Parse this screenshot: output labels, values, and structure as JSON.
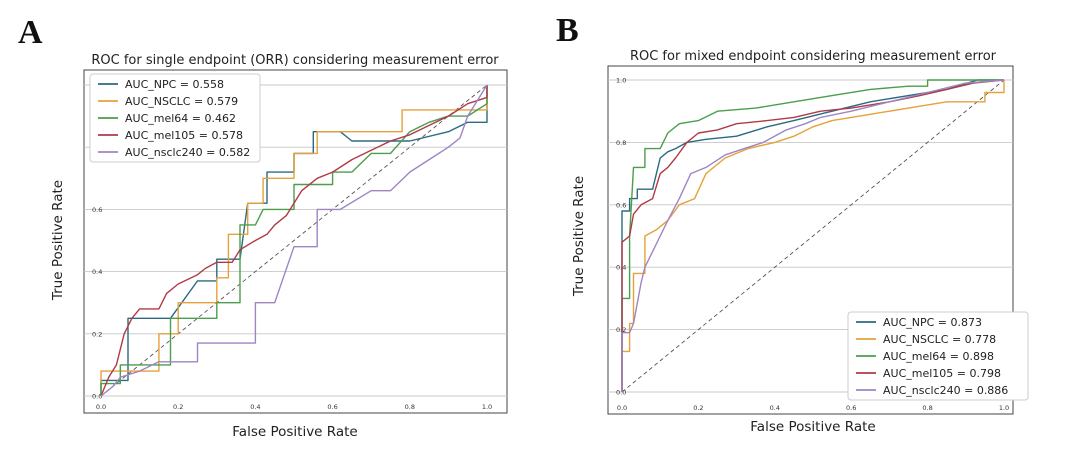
{
  "panels": {
    "a_label": "A",
    "b_label": "B"
  },
  "chart_data": [
    {
      "type": "line",
      "title": "ROC for single endpoint (ORR) considering measurement error",
      "xlabel": "False Positive Rate",
      "ylabel": "True Positive Rate",
      "xlim": [
        0,
        1
      ],
      "ylim": [
        0,
        1
      ],
      "xticks": [
        "0.0",
        "0.2",
        "0.4",
        "0.6",
        "0.8",
        "1.0"
      ],
      "yticks": [
        "0.0",
        "0.2",
        "0.4",
        "0.6",
        "0.8",
        "1.0"
      ],
      "grid": "horizontal",
      "legend_position": "top-left",
      "diagonal": true,
      "series": [
        {
          "name": "AUC_NPC = 0.558",
          "color": "#2b6a80",
          "points": [
            [
              0,
              0
            ],
            [
              0,
              0.05
            ],
            [
              0.07,
              0.05
            ],
            [
              0.07,
              0.25
            ],
            [
              0.12,
              0.25
            ],
            [
              0.18,
              0.25
            ],
            [
              0.25,
              0.37
            ],
            [
              0.3,
              0.37
            ],
            [
              0.3,
              0.44
            ],
            [
              0.36,
              0.44
            ],
            [
              0.38,
              0.62
            ],
            [
              0.43,
              0.62
            ],
            [
              0.43,
              0.72
            ],
            [
              0.47,
              0.72
            ],
            [
              0.5,
              0.72
            ],
            [
              0.5,
              0.78
            ],
            [
              0.55,
              0.78
            ],
            [
              0.55,
              0.85
            ],
            [
              0.6,
              0.85
            ],
            [
              0.62,
              0.85
            ],
            [
              0.65,
              0.82
            ],
            [
              0.7,
              0.82
            ],
            [
              0.8,
              0.82
            ],
            [
              0.9,
              0.85
            ],
            [
              0.95,
              0.88
            ],
            [
              1,
              0.88
            ],
            [
              1,
              1
            ]
          ]
        },
        {
          "name": "AUC_NSCLC = 0.579",
          "color": "#e5a13a",
          "points": [
            [
              0,
              0
            ],
            [
              0,
              0.08
            ],
            [
              0.15,
              0.08
            ],
            [
              0.15,
              0.2
            ],
            [
              0.2,
              0.2
            ],
            [
              0.2,
              0.3
            ],
            [
              0.3,
              0.3
            ],
            [
              0.3,
              0.38
            ],
            [
              0.33,
              0.38
            ],
            [
              0.33,
              0.52
            ],
            [
              0.38,
              0.52
            ],
            [
              0.38,
              0.62
            ],
            [
              0.42,
              0.62
            ],
            [
              0.42,
              0.7
            ],
            [
              0.5,
              0.7
            ],
            [
              0.5,
              0.78
            ],
            [
              0.56,
              0.78
            ],
            [
              0.56,
              0.85
            ],
            [
              0.7,
              0.85
            ],
            [
              0.7,
              0.85
            ],
            [
              0.78,
              0.85
            ],
            [
              0.78,
              0.92
            ],
            [
              0.9,
              0.92
            ],
            [
              0.95,
              0.92
            ],
            [
              1,
              0.92
            ],
            [
              1,
              1
            ]
          ]
        },
        {
          "name": "AUC_mel64 = 0.462",
          "color": "#4b9e4b",
          "points": [
            [
              0,
              0
            ],
            [
              0,
              0.04
            ],
            [
              0.05,
              0.04
            ],
            [
              0.05,
              0.1
            ],
            [
              0.18,
              0.1
            ],
            [
              0.18,
              0.25
            ],
            [
              0.3,
              0.25
            ],
            [
              0.3,
              0.3
            ],
            [
              0.36,
              0.3
            ],
            [
              0.36,
              0.55
            ],
            [
              0.4,
              0.55
            ],
            [
              0.42,
              0.6
            ],
            [
              0.5,
              0.6
            ],
            [
              0.5,
              0.68
            ],
            [
              0.6,
              0.68
            ],
            [
              0.6,
              0.72
            ],
            [
              0.65,
              0.72
            ],
            [
              0.7,
              0.78
            ],
            [
              0.75,
              0.78
            ],
            [
              0.8,
              0.85
            ],
            [
              0.85,
              0.88
            ],
            [
              0.9,
              0.9
            ],
            [
              0.95,
              0.9
            ],
            [
              1,
              0.94
            ],
            [
              1,
              1
            ]
          ]
        },
        {
          "name": "AUC_mel105 = 0.578",
          "color": "#b03a48",
          "points": [
            [
              0,
              0
            ],
            [
              0.02,
              0.06
            ],
            [
              0.04,
              0.1
            ],
            [
              0.06,
              0.2
            ],
            [
              0.08,
              0.25
            ],
            [
              0.1,
              0.28
            ],
            [
              0.15,
              0.28
            ],
            [
              0.17,
              0.33
            ],
            [
              0.2,
              0.36
            ],
            [
              0.25,
              0.39
            ],
            [
              0.27,
              0.41
            ],
            [
              0.3,
              0.43
            ],
            [
              0.34,
              0.43
            ],
            [
              0.36,
              0.47
            ],
            [
              0.4,
              0.5
            ],
            [
              0.43,
              0.52
            ],
            [
              0.45,
              0.55
            ],
            [
              0.48,
              0.58
            ],
            [
              0.52,
              0.66
            ],
            [
              0.56,
              0.7
            ],
            [
              0.6,
              0.72
            ],
            [
              0.65,
              0.76
            ],
            [
              0.7,
              0.79
            ],
            [
              0.75,
              0.82
            ],
            [
              0.8,
              0.84
            ],
            [
              0.85,
              0.87
            ],
            [
              0.9,
              0.9
            ],
            [
              0.95,
              0.94
            ],
            [
              1,
              0.96
            ],
            [
              1,
              1
            ]
          ]
        },
        {
          "name": "AUC_nsclc240 = 0.582",
          "color": "#9e85c4",
          "points": [
            [
              0,
              0
            ],
            [
              0.03,
              0.03
            ],
            [
              0.05,
              0.06
            ],
            [
              0.1,
              0.08
            ],
            [
              0.15,
              0.11
            ],
            [
              0.25,
              0.11
            ],
            [
              0.25,
              0.17
            ],
            [
              0.4,
              0.17
            ],
            [
              0.4,
              0.3
            ],
            [
              0.45,
              0.3
            ],
            [
              0.5,
              0.48
            ],
            [
              0.56,
              0.48
            ],
            [
              0.56,
              0.6
            ],
            [
              0.62,
              0.6
            ],
            [
              0.7,
              0.66
            ],
            [
              0.75,
              0.66
            ],
            [
              0.8,
              0.72
            ],
            [
              0.85,
              0.76
            ],
            [
              0.9,
              0.8
            ],
            [
              0.93,
              0.83
            ],
            [
              0.95,
              0.9
            ],
            [
              1,
              1
            ]
          ]
        }
      ]
    },
    {
      "type": "line",
      "title": "ROC for mixed endpoint considering measurement error",
      "xlabel": "False Positive Rate",
      "ylabel": "True Positive Rate",
      "xlim": [
        0,
        1
      ],
      "ylim": [
        0,
        1
      ],
      "xticks": [
        "0.0",
        "0.2",
        "0.4",
        "0.6",
        "0.8",
        "1.0"
      ],
      "yticks": [
        "0.0",
        "0.2",
        "0.4",
        "0.6",
        "0.8",
        "1.0"
      ],
      "grid": "horizontal",
      "legend_position": "bottom-right",
      "diagonal": true,
      "series": [
        {
          "name": "AUC_NPC = 0.873",
          "color": "#2b6a80",
          "points": [
            [
              0,
              0
            ],
            [
              0,
              0.58
            ],
            [
              0.02,
              0.58
            ],
            [
              0.02,
              0.62
            ],
            [
              0.04,
              0.62
            ],
            [
              0.04,
              0.65
            ],
            [
              0.08,
              0.65
            ],
            [
              0.1,
              0.75
            ],
            [
              0.12,
              0.77
            ],
            [
              0.14,
              0.78
            ],
            [
              0.17,
              0.8
            ],
            [
              0.22,
              0.81
            ],
            [
              0.3,
              0.82
            ],
            [
              0.38,
              0.85
            ],
            [
              0.45,
              0.87
            ],
            [
              0.55,
              0.9
            ],
            [
              0.65,
              0.93
            ],
            [
              0.75,
              0.95
            ],
            [
              0.85,
              0.97
            ],
            [
              0.93,
              1
            ],
            [
              1,
              1
            ]
          ]
        },
        {
          "name": "AUC_NSCLC = 0.778",
          "color": "#e5a13a",
          "points": [
            [
              0,
              0
            ],
            [
              0,
              0.13
            ],
            [
              0.02,
              0.13
            ],
            [
              0.02,
              0.22
            ],
            [
              0.03,
              0.22
            ],
            [
              0.03,
              0.38
            ],
            [
              0.06,
              0.38
            ],
            [
              0.06,
              0.5
            ],
            [
              0.09,
              0.52
            ],
            [
              0.12,
              0.55
            ],
            [
              0.15,
              0.6
            ],
            [
              0.19,
              0.62
            ],
            [
              0.22,
              0.7
            ],
            [
              0.27,
              0.75
            ],
            [
              0.33,
              0.78
            ],
            [
              0.4,
              0.8
            ],
            [
              0.45,
              0.82
            ],
            [
              0.5,
              0.85
            ],
            [
              0.55,
              0.87
            ],
            [
              0.65,
              0.89
            ],
            [
              0.75,
              0.91
            ],
            [
              0.85,
              0.93
            ],
            [
              0.9,
              0.93
            ],
            [
              0.95,
              0.93
            ],
            [
              0.95,
              0.96
            ],
            [
              1,
              0.96
            ],
            [
              1,
              1
            ]
          ]
        },
        {
          "name": "AUC_mel64 = 0.898",
          "color": "#4b9e4b",
          "points": [
            [
              0,
              0
            ],
            [
              0,
              0.3
            ],
            [
              0.02,
              0.3
            ],
            [
              0.02,
              0.5
            ],
            [
              0.03,
              0.72
            ],
            [
              0.06,
              0.72
            ],
            [
              0.06,
              0.78
            ],
            [
              0.1,
              0.78
            ],
            [
              0.12,
              0.83
            ],
            [
              0.15,
              0.86
            ],
            [
              0.2,
              0.87
            ],
            [
              0.25,
              0.9
            ],
            [
              0.35,
              0.91
            ],
            [
              0.45,
              0.93
            ],
            [
              0.55,
              0.95
            ],
            [
              0.65,
              0.97
            ],
            [
              0.75,
              0.98
            ],
            [
              0.8,
              0.98
            ],
            [
              0.8,
              1
            ],
            [
              1,
              1
            ]
          ]
        },
        {
          "name": "AUC_mel105 = 0.798",
          "color": "#b03a48",
          "points": [
            [
              0,
              0
            ],
            [
              0,
              0.48
            ],
            [
              0.02,
              0.5
            ],
            [
              0.03,
              0.57
            ],
            [
              0.05,
              0.6
            ],
            [
              0.08,
              0.62
            ],
            [
              0.1,
              0.7
            ],
            [
              0.12,
              0.72
            ],
            [
              0.14,
              0.75
            ],
            [
              0.17,
              0.8
            ],
            [
              0.2,
              0.83
            ],
            [
              0.25,
              0.84
            ],
            [
              0.3,
              0.86
            ],
            [
              0.38,
              0.87
            ],
            [
              0.45,
              0.88
            ],
            [
              0.52,
              0.9
            ],
            [
              0.6,
              0.91
            ],
            [
              0.7,
              0.93
            ],
            [
              0.78,
              0.95
            ],
            [
              0.85,
              0.97
            ],
            [
              0.92,
              0.99
            ],
            [
              1,
              1
            ]
          ]
        },
        {
          "name": "AUC_nsclc240 = 0.886",
          "color": "#9e85c4",
          "points": [
            [
              0,
              0
            ],
            [
              0,
              0.19
            ],
            [
              0.02,
              0.19
            ],
            [
              0.03,
              0.22
            ],
            [
              0.05,
              0.35
            ],
            [
              0.06,
              0.4
            ],
            [
              0.08,
              0.45
            ],
            [
              0.1,
              0.5
            ],
            [
              0.12,
              0.55
            ],
            [
              0.15,
              0.62
            ],
            [
              0.18,
              0.7
            ],
            [
              0.22,
              0.72
            ],
            [
              0.27,
              0.76
            ],
            [
              0.32,
              0.78
            ],
            [
              0.37,
              0.8
            ],
            [
              0.43,
              0.84
            ],
            [
              0.48,
              0.86
            ],
            [
              0.52,
              0.88
            ],
            [
              0.6,
              0.9
            ],
            [
              0.7,
              0.93
            ],
            [
              0.8,
              0.96
            ],
            [
              0.9,
              0.99
            ],
            [
              1,
              1
            ]
          ]
        }
      ]
    }
  ]
}
